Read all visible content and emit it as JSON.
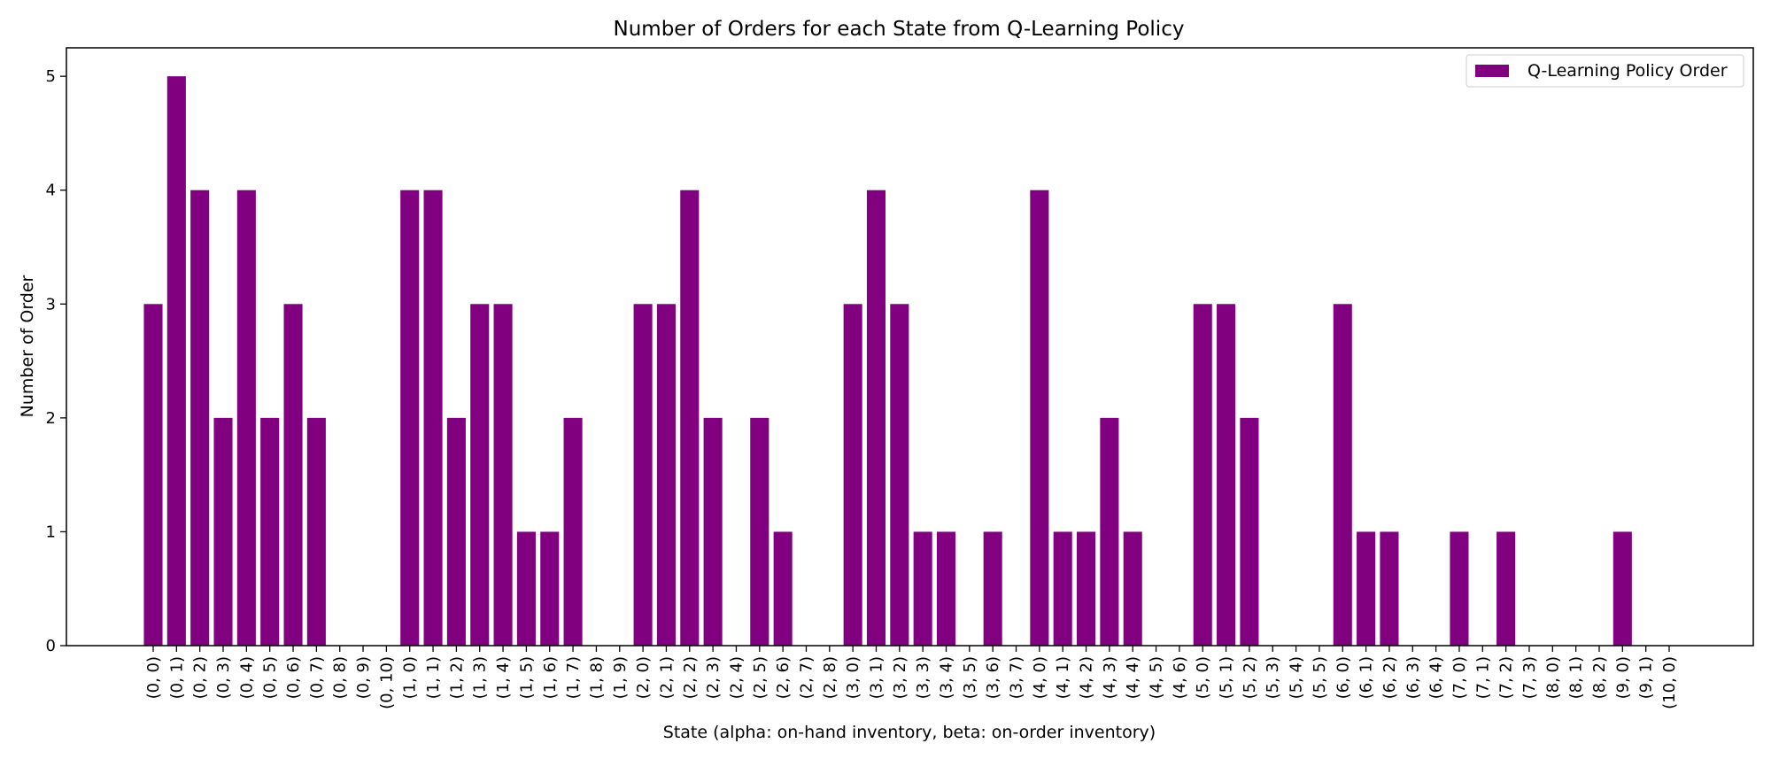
{
  "chart_data": {
    "type": "bar",
    "title": "Number of Orders for each State from Q-Learning Policy",
    "xlabel": "State (alpha: on-hand inventory, beta: on-order inventory)",
    "ylabel": "Number of Order",
    "ylim": [
      0,
      5.25
    ],
    "yticks": [
      0,
      1,
      2,
      3,
      4,
      5
    ],
    "grid": false,
    "legend_position": "top-right",
    "color": "#800080",
    "categories": [
      "(0, 0)",
      "(0, 1)",
      "(0, 2)",
      "(0, 3)",
      "(0, 4)",
      "(0, 5)",
      "(0, 6)",
      "(0, 7)",
      "(0, 8)",
      "(0, 9)",
      "(0, 10)",
      "(1, 0)",
      "(1, 1)",
      "(1, 2)",
      "(1, 3)",
      "(1, 4)",
      "(1, 5)",
      "(1, 6)",
      "(1, 7)",
      "(1, 8)",
      "(1, 9)",
      "(2, 0)",
      "(2, 1)",
      "(2, 2)",
      "(2, 3)",
      "(2, 4)",
      "(2, 5)",
      "(2, 6)",
      "(2, 7)",
      "(2, 8)",
      "(3, 0)",
      "(3, 1)",
      "(3, 2)",
      "(3, 3)",
      "(3, 4)",
      "(3, 5)",
      "(3, 6)",
      "(3, 7)",
      "(4, 0)",
      "(4, 1)",
      "(4, 2)",
      "(4, 3)",
      "(4, 4)",
      "(4, 5)",
      "(4, 6)",
      "(5, 0)",
      "(5, 1)",
      "(5, 2)",
      "(5, 3)",
      "(5, 4)",
      "(5, 5)",
      "(6, 0)",
      "(6, 1)",
      "(6, 2)",
      "(6, 3)",
      "(6, 4)",
      "(7, 0)",
      "(7, 1)",
      "(7, 2)",
      "(7, 3)",
      "(8, 0)",
      "(8, 1)",
      "(8, 2)",
      "(9, 0)",
      "(9, 1)",
      "(10, 0)"
    ],
    "series": [
      {
        "name": "Q-Learning Policy Order",
        "values": [
          3,
          5,
          4,
          2,
          4,
          2,
          3,
          2,
          0,
          0,
          0,
          4,
          4,
          2,
          3,
          3,
          1,
          1,
          2,
          0,
          0,
          3,
          3,
          4,
          2,
          0,
          2,
          1,
          0,
          0,
          3,
          4,
          3,
          1,
          1,
          0,
          1,
          0,
          4,
          1,
          1,
          2,
          1,
          0,
          0,
          3,
          3,
          2,
          0,
          0,
          0,
          3,
          1,
          1,
          0,
          0,
          1,
          0,
          1,
          0,
          0,
          0,
          0,
          1,
          0,
          0
        ]
      }
    ]
  }
}
